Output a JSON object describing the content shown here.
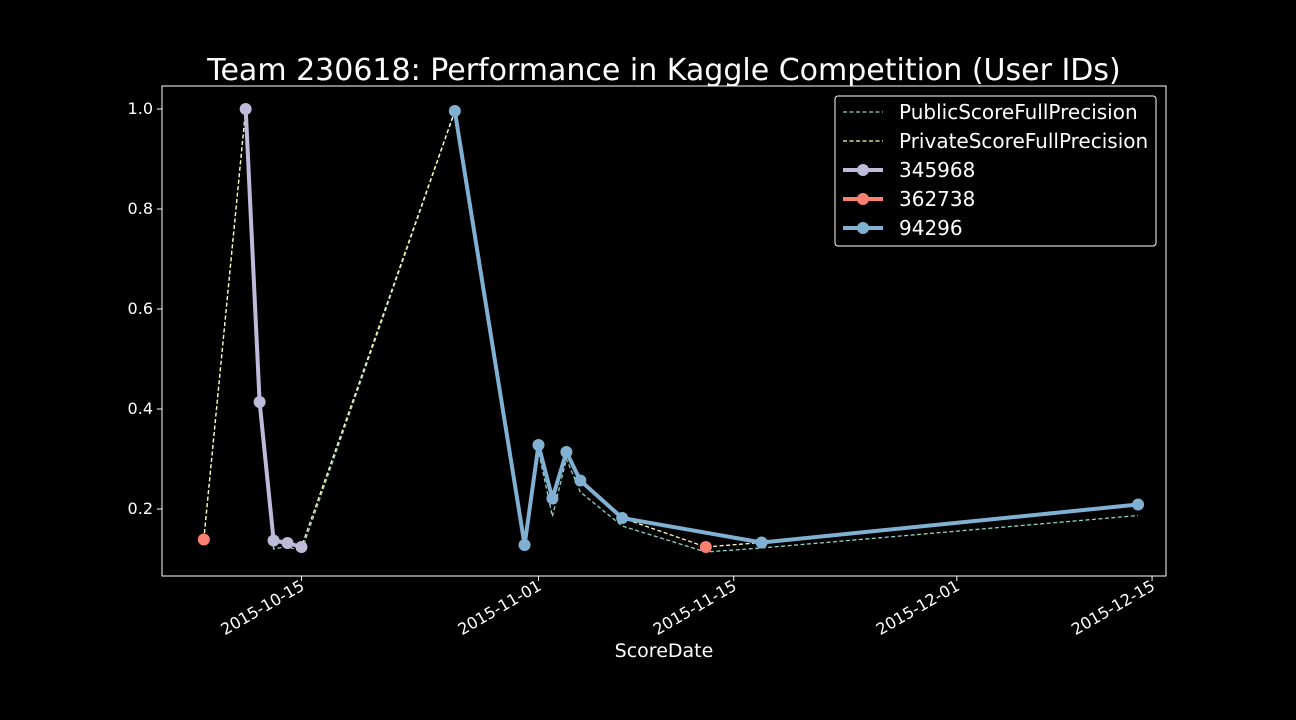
{
  "chart_data": {
    "type": "line",
    "title": "Team 230618: Performance in Kaggle Competition (User IDs)",
    "xlabel": "ScoreDate",
    "ylabel": "",
    "x_type": "date",
    "xlim": [
      "2015-10-05",
      "2015-12-16"
    ],
    "ylim": [
      0.066,
      1.046
    ],
    "x_ticks": [
      "2015-10-15",
      "2015-11-01",
      "2015-11-15",
      "2015-12-01",
      "2015-12-15"
    ],
    "y_ticks": [
      0.2,
      0.4,
      0.6,
      0.8,
      1.0
    ],
    "y_tick_labels": [
      "0.2",
      "0.4",
      "0.6",
      "0.8",
      "1.0"
    ],
    "grid": false,
    "legend_position": "top-right",
    "background": "#000000",
    "series": [
      {
        "name": "PublicScoreFullPrecision",
        "style": "dashed",
        "color": "#8dd3c7",
        "x": [
          "2015-10-08",
          "2015-10-11",
          "2015-10-12",
          "2015-10-13",
          "2015-10-14",
          "2015-10-15",
          "2015-10-26",
          "2015-10-31",
          "2015-11-01",
          "2015-11-02",
          "2015-11-03",
          "2015-11-04",
          "2015-11-07",
          "2015-11-13",
          "2015-11-17",
          "2015-12-14"
        ],
        "y": [
          0.139,
          1.0,
          0.414,
          0.12,
          0.125,
          0.115,
          0.995,
          0.128,
          0.316,
          0.185,
          0.3,
          0.234,
          0.166,
          0.114,
          0.122,
          0.187
        ]
      },
      {
        "name": "PrivateScoreFullPrecision",
        "style": "dashed",
        "color": "#ffffb3",
        "x": [
          "2015-10-08",
          "2015-10-11",
          "2015-10-12",
          "2015-10-13",
          "2015-10-14",
          "2015-10-15",
          "2015-10-26",
          "2015-10-31",
          "2015-11-01",
          "2015-11-02",
          "2015-11-03",
          "2015-11-04",
          "2015-11-07",
          "2015-11-13",
          "2015-11-17",
          "2015-12-14"
        ],
        "y": [
          0.139,
          1.0,
          0.414,
          0.137,
          0.132,
          0.124,
          0.996,
          0.128,
          0.328,
          0.221,
          0.314,
          0.257,
          0.182,
          0.124,
          0.133,
          0.209
        ]
      },
      {
        "name": "345968",
        "style": "solid-marker",
        "color": "#bebada",
        "x": [
          "2015-10-11",
          "2015-10-12",
          "2015-10-13",
          "2015-10-14",
          "2015-10-15"
        ],
        "y": [
          1.0,
          0.414,
          0.137,
          0.132,
          0.124
        ]
      },
      {
        "name": "362738",
        "style": "solid-marker",
        "color": "#fb8072",
        "x": [
          "2015-10-08",
          "2015-11-13"
        ],
        "y": [
          0.139,
          0.124
        ],
        "connect": false
      },
      {
        "name": "94296",
        "style": "solid-marker",
        "color": "#80b1d3",
        "x": [
          "2015-10-26",
          "2015-10-31",
          "2015-11-01",
          "2015-11-02",
          "2015-11-03",
          "2015-11-04",
          "2015-11-07",
          "2015-11-17",
          "2015-12-14"
        ],
        "y": [
          0.996,
          0.128,
          0.328,
          0.221,
          0.314,
          0.257,
          0.182,
          0.133,
          0.209
        ]
      }
    ]
  }
}
